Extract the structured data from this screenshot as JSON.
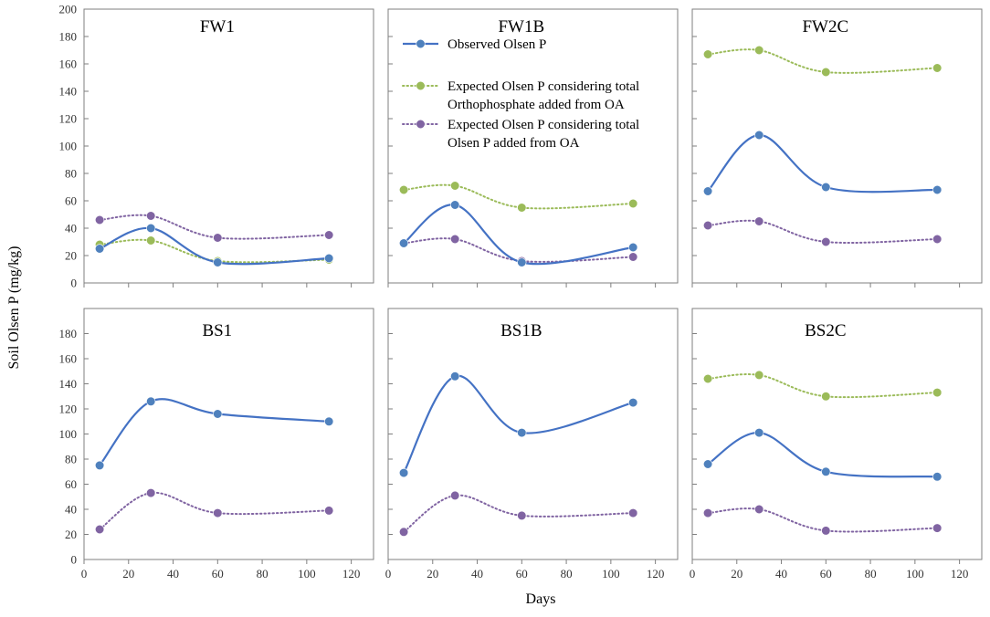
{
  "chart_data": {
    "type": "line",
    "ylabel": "Soil Olsen P (mg/kg)",
    "xlabel": "Days",
    "xlim": [
      0,
      130
    ],
    "ylim": [
      0,
      200
    ],
    "xticks": [
      0,
      20,
      40,
      60,
      80,
      100,
      120
    ],
    "yticks": [
      0,
      20,
      40,
      60,
      80,
      100,
      120,
      140,
      160,
      180,
      200
    ],
    "legend": {
      "position": "inside top of FW1B panel",
      "entries": [
        {
          "key": "observed",
          "lines": [
            "Observed Olsen P"
          ]
        },
        {
          "key": "expected_ortho",
          "lines": [
            "Expected Olsen P considering total",
            "Orthophosphate added from OA"
          ]
        },
        {
          "key": "expected_olsen",
          "lines": [
            "Expected Olsen P considering  total",
            "Olsen P added from OA"
          ]
        }
      ]
    },
    "series_styles": {
      "observed": {
        "color": "#4472c4",
        "marker": "#4f81bd",
        "dash": "solid"
      },
      "expected_ortho": {
        "color": "#9bbb59",
        "marker": "#9bbb59",
        "dash": "dotted"
      },
      "expected_olsen": {
        "color": "#8064a2",
        "marker": "#8064a2",
        "dash": "dotted"
      }
    },
    "panels": [
      {
        "title": "FW1",
        "x": [
          7,
          30,
          60,
          110
        ],
        "series": [
          {
            "key": "observed",
            "name": "Observed Olsen P",
            "values": [
              25,
              40,
              15,
              18
            ]
          },
          {
            "key": "expected_ortho",
            "name": "Expected Olsen P considering total Orthophosphate added from OA",
            "values": [
              28,
              31,
              16,
              17
            ]
          },
          {
            "key": "expected_olsen",
            "name": "Expected Olsen P considering total Olsen P added from OA",
            "values": [
              46,
              49,
              33,
              35
            ]
          }
        ]
      },
      {
        "title": "FW1B",
        "x": [
          7,
          30,
          60,
          110
        ],
        "series": [
          {
            "key": "observed",
            "name": "Observed Olsen P",
            "values": [
              29,
              57,
              15,
              26
            ]
          },
          {
            "key": "expected_ortho",
            "name": "Expected Olsen P considering total Orthophosphate added from OA",
            "values": [
              68,
              71,
              55,
              58
            ]
          },
          {
            "key": "expected_olsen",
            "name": "Expected Olsen P considering total Olsen P added from OA",
            "values": [
              29,
              32,
              16,
              19
            ]
          }
        ]
      },
      {
        "title": "FW2C",
        "x": [
          7,
          30,
          60,
          110
        ],
        "series": [
          {
            "key": "observed",
            "name": "Observed Olsen P",
            "values": [
              67,
              108,
              70,
              68
            ]
          },
          {
            "key": "expected_ortho",
            "name": "Expected Olsen P considering total Orthophosphate added from OA",
            "values": [
              167,
              170,
              154,
              157
            ]
          },
          {
            "key": "expected_olsen",
            "name": "Expected Olsen P considering total Olsen P added from OA",
            "values": [
              42,
              45,
              30,
              32
            ]
          }
        ]
      },
      {
        "title": "BS1",
        "x": [
          7,
          30,
          60,
          110
        ],
        "series": [
          {
            "key": "observed",
            "name": "Observed Olsen P",
            "values": [
              75,
              126,
              116,
              110
            ]
          },
          {
            "key": "expected_olsen",
            "name": "Expected Olsen P considering total Olsen P added from OA",
            "values": [
              24,
              53,
              37,
              39
            ]
          }
        ]
      },
      {
        "title": "BS1B",
        "x": [
          7,
          30,
          60,
          110
        ],
        "series": [
          {
            "key": "observed",
            "name": "Observed Olsen P",
            "values": [
              69,
              146,
              101,
              125
            ]
          },
          {
            "key": "expected_olsen",
            "name": "Expected Olsen P considering total Olsen P added from OA",
            "values": [
              22,
              51,
              35,
              37
            ]
          }
        ]
      },
      {
        "title": "BS2C",
        "x": [
          7,
          30,
          60,
          110
        ],
        "series": [
          {
            "key": "observed",
            "name": "Observed Olsen P",
            "values": [
              76,
              101,
              70,
              66
            ]
          },
          {
            "key": "expected_ortho",
            "name": "Expected Olsen P considering total Orthophosphate added from OA",
            "values": [
              144,
              147,
              130,
              133
            ]
          },
          {
            "key": "expected_olsen",
            "name": "Expected Olsen P considering total Olsen P added from OA",
            "values": [
              37,
              40,
              23,
              25
            ]
          }
        ]
      }
    ]
  }
}
